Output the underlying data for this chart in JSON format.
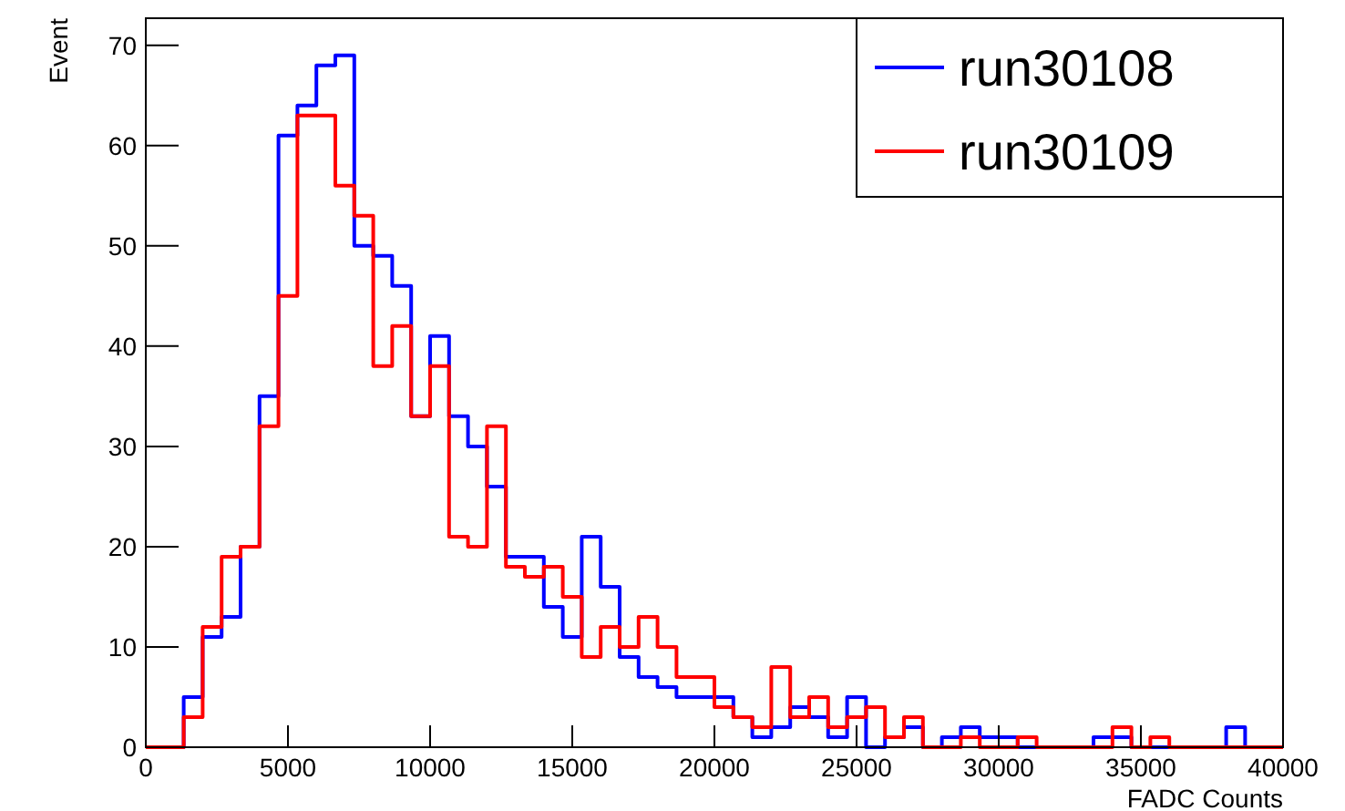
{
  "chart_data": {
    "type": "histogram",
    "xlabel": "FADC Counts",
    "ylabel": "Event",
    "bins": [
      0,
      666.7,
      1333.3,
      2000,
      2666.7,
      3333.3,
      4000,
      4666.7,
      5333.3,
      6000,
      6666.7,
      7333.3,
      8000,
      8666.7,
      9333.3,
      10000,
      10666.7,
      11333.3,
      12000,
      12666.7,
      13333.3,
      14000,
      14666.7,
      15333.3,
      16000,
      16666.7,
      17333.3,
      18000,
      18666.7,
      19333.3,
      20000,
      20666.7,
      21333.3,
      22000,
      22666.7,
      23333.3,
      24000,
      24666.7,
      25333.3,
      26000,
      26666.7,
      27333.3,
      28000,
      28666.7,
      29333.3,
      30000,
      30666.7,
      31333.3,
      32000,
      32666.7,
      33333.3,
      34000,
      34666.7,
      35333.3,
      36000,
      36666.7,
      37333.3,
      38000,
      38666.7,
      39333.3,
      40000
    ],
    "series": [
      {
        "name": "run30108",
        "color": "#0000ff",
        "values": [
          0,
          0,
          5,
          11,
          13,
          20,
          35,
          61,
          64,
          68,
          69,
          50,
          49,
          46,
          33,
          41,
          33,
          30,
          26,
          19,
          19,
          14,
          11,
          21,
          16,
          9,
          7,
          6,
          5,
          5,
          5,
          3,
          1,
          2,
          4,
          3,
          1,
          5,
          0,
          1,
          2,
          0,
          1,
          2,
          1,
          1,
          0,
          0,
          0,
          0,
          1,
          1,
          0,
          0,
          0,
          0,
          0,
          2,
          0,
          0
        ]
      },
      {
        "name": "run30109",
        "color": "#ff0000",
        "values": [
          0,
          0,
          3,
          12,
          19,
          20,
          32,
          45,
          63,
          63,
          56,
          53,
          38,
          42,
          33,
          38,
          21,
          20,
          32,
          18,
          17,
          18,
          15,
          9,
          12,
          10,
          13,
          10,
          7,
          7,
          4,
          3,
          2,
          8,
          3,
          5,
          2,
          3,
          4,
          1,
          3,
          0,
          0,
          1,
          0,
          0,
          1,
          0,
          0,
          0,
          0,
          2,
          0,
          1,
          0,
          0,
          0,
          0,
          0,
          0
        ]
      }
    ],
    "xlim": [
      0,
      40000
    ],
    "xticks": [
      0,
      5000,
      10000,
      15000,
      20000,
      25000,
      30000,
      35000,
      40000
    ],
    "ylim": [
      0,
      72.7
    ],
    "yticks": [
      0,
      10,
      20,
      30,
      40,
      50,
      60,
      70
    ],
    "legend": "top right"
  }
}
